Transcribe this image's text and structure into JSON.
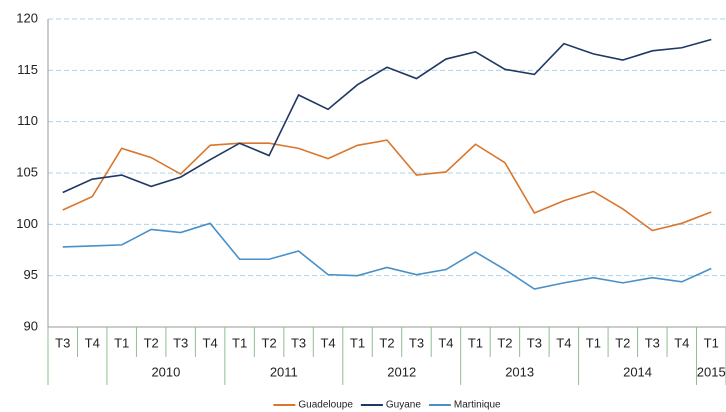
{
  "chart_data": {
    "type": "line",
    "categories": [
      "T3",
      "T4",
      "T1",
      "T2",
      "T3",
      "T4",
      "T1",
      "T2",
      "T3",
      "T4",
      "T1",
      "T2",
      "T3",
      "T4",
      "T1",
      "T2",
      "T3",
      "T4",
      "T1",
      "T2",
      "T3",
      "T4",
      "T1"
    ],
    "category_groups": [
      {
        "label": null,
        "size": 2
      },
      {
        "label": "2010",
        "size": 4
      },
      {
        "label": "2011",
        "size": 4
      },
      {
        "label": "2012",
        "size": 4
      },
      {
        "label": "2013",
        "size": 4
      },
      {
        "label": "2014",
        "size": 4
      },
      {
        "label": "2015",
        "size": 1
      }
    ],
    "series": [
      {
        "name": "Guadeloupe",
        "color": "#d9772f",
        "values": [
          101.4,
          102.7,
          107.4,
          106.5,
          104.9,
          107.7,
          107.9,
          107.9,
          107.4,
          106.4,
          107.7,
          108.2,
          104.8,
          105.1,
          107.8,
          106.0,
          101.1,
          102.3,
          103.2,
          101.5,
          99.4,
          100.1,
          101.2
        ]
      },
      {
        "name": "Guyane",
        "color": "#1f3864",
        "values": [
          103.1,
          104.4,
          104.8,
          103.7,
          104.6,
          106.3,
          107.9,
          106.7,
          112.6,
          111.2,
          113.6,
          115.3,
          114.2,
          116.1,
          116.8,
          115.1,
          114.6,
          117.6,
          116.6,
          116.0,
          116.9,
          117.2,
          118.0
        ]
      },
      {
        "name": "Martinique",
        "color": "#4a90c8",
        "values": [
          97.8,
          97.9,
          98.0,
          99.5,
          99.2,
          100.1,
          96.6,
          96.6,
          97.4,
          95.1,
          95.0,
          95.8,
          95.1,
          95.6,
          97.3,
          95.6,
          93.7,
          94.3,
          94.8,
          94.3,
          94.8,
          94.4,
          95.7
        ]
      }
    ],
    "ylim": [
      90,
      120
    ],
    "yticks": [
      90,
      95,
      100,
      105,
      110,
      115,
      120
    ],
    "grid": true,
    "legend": "bottom"
  }
}
